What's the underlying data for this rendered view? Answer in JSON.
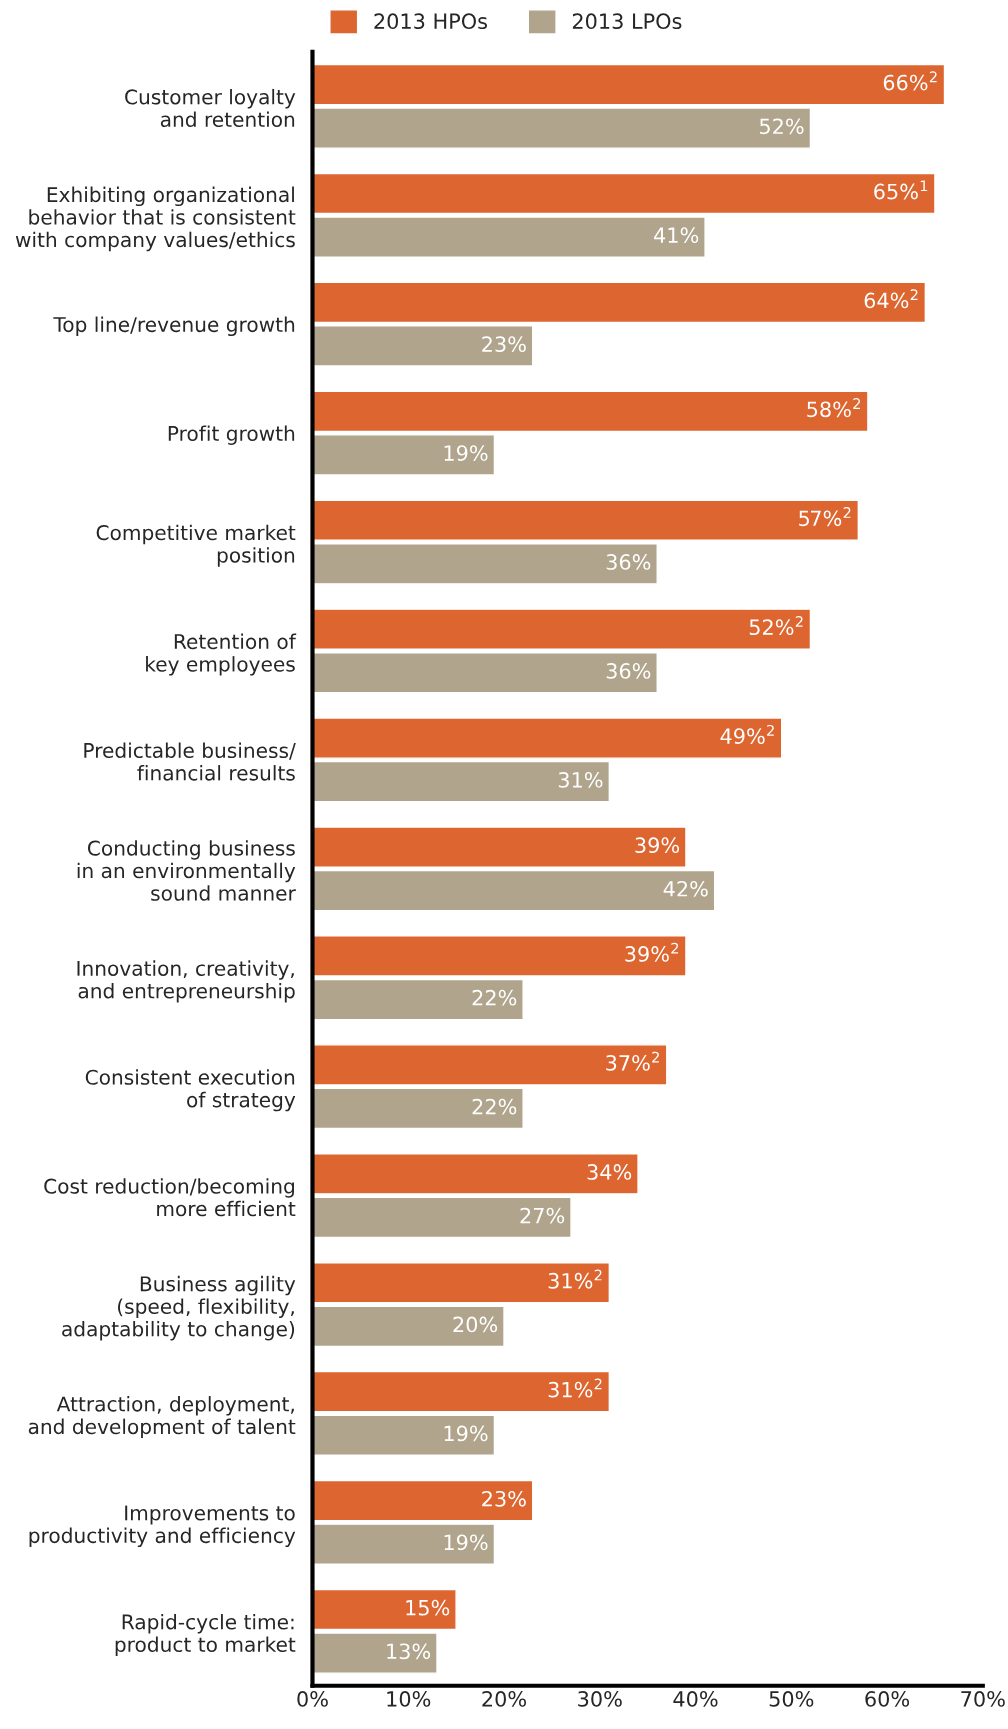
{
  "chart_data": {
    "type": "bar",
    "orientation": "horizontal",
    "categories": [
      "Customer loyalty\nand retention",
      "Exhibiting organizational\nbehavior that is consistent\nwith company values/ethics",
      "Top line/revenue growth",
      "Profit growth",
      "Competitive market\nposition",
      "Retention of\nkey employees",
      "Predictable business/\nfinancial results",
      "Conducting business\nin an environmentally\nsound manner",
      "Innovation, creativity,\nand entrepreneurship",
      "Consistent execution\nof strategy",
      "Cost reduction/becoming\nmore efficient",
      "Business agility\n(speed, flexibility,\nadaptability to change)",
      "Attraction, deployment,\nand development of talent",
      "Improvements to\nproductivity and efficiency",
      "Rapid-cycle time:\nproduct to market"
    ],
    "series": [
      {
        "name": "2013 HPOs",
        "color": "#dd6630",
        "values": [
          66,
          65,
          64,
          58,
          57,
          52,
          49,
          39,
          39,
          37,
          34,
          31,
          31,
          23,
          15
        ],
        "value_labels": [
          "66%$^{2}$",
          "65%$^{1}$",
          "64%$^{2}$",
          "58%$^{2}$",
          "57%$^{2}$",
          "52%$^{2}$",
          "49%$^{2}$",
          "39%",
          "39%$^{2}$",
          "37%$^{2}$",
          "34%",
          "31%$^{2}$",
          "31%$^{2}$",
          "23%",
          "15%"
        ]
      },
      {
        "name": "2013 LPOs",
        "color": "#b0a58c",
        "values": [
          52,
          41,
          23,
          19,
          36,
          36,
          31,
          42,
          22,
          22,
          27,
          20,
          19,
          19,
          13
        ],
        "value_labels": [
          "52%",
          "41%",
          "23%",
          "19%",
          "36%",
          "36%",
          "31%",
          "42%",
          "22%",
          "22%",
          "27%",
          "20%",
          "19%",
          "19%",
          "13%"
        ]
      }
    ],
    "xlim": [
      0,
      70
    ],
    "xticks": [
      {
        "value": 0,
        "label": "0%"
      },
      {
        "value": 10,
        "label": "10%"
      },
      {
        "value": 20,
        "label": "20%"
      },
      {
        "value": 30,
        "label": "30%"
      },
      {
        "value": 40,
        "label": "40%"
      },
      {
        "value": 50,
        "label": "50%"
      },
      {
        "value": 60,
        "label": "60%"
      },
      {
        "value": 70,
        "label": "70%"
      }
    ],
    "grid": false,
    "legend": "top"
  }
}
